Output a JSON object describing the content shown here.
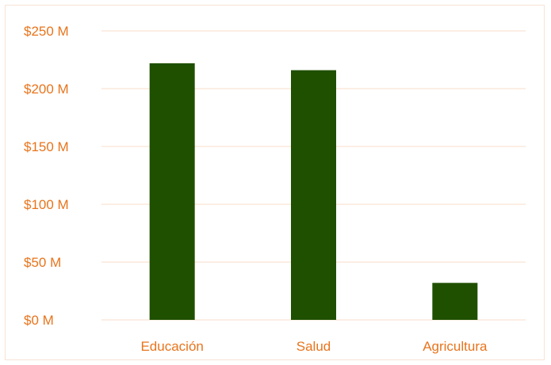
{
  "chart_data": {
    "type": "bar",
    "title": "",
    "xlabel": "",
    "ylabel": "",
    "categories": [
      "Educación",
      "Salud",
      "Agricultura"
    ],
    "values": [
      222,
      216,
      32
    ],
    "ylim": [
      0,
      250
    ],
    "yticks": [
      0,
      50,
      100,
      150,
      200,
      250
    ],
    "ytick_labels": [
      "$0 M",
      "$50 M",
      "$100 M",
      "$150 M",
      "$200 M",
      "$250 M"
    ],
    "grid": true,
    "legend": "none",
    "colors": {
      "bar": "#1f5000",
      "tick_text": "#e8741c",
      "gridline": "#f8dcc8",
      "border": "#f8e3d6"
    }
  }
}
